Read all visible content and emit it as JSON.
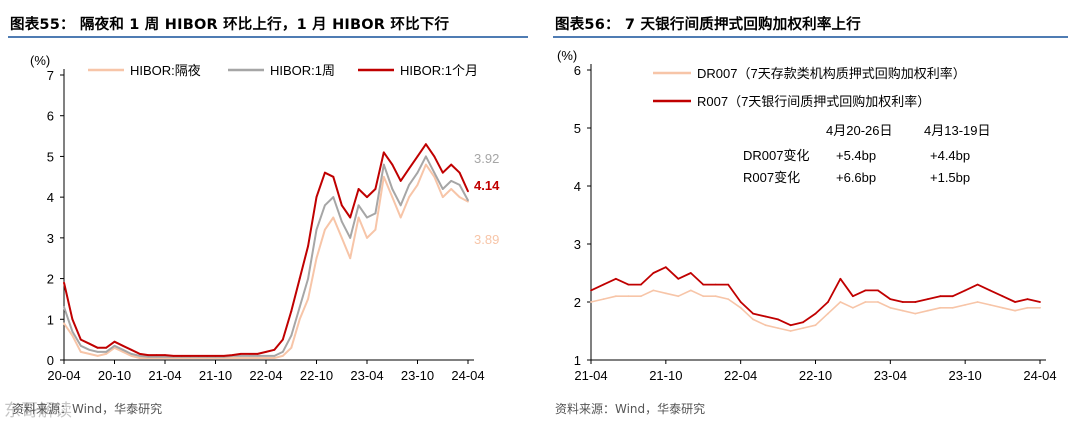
{
  "charts": {
    "left": {
      "figure_title": "图表55： 隔夜和 1 周 HIBOR 环比上行，1 月 HIBOR 环比下行",
      "source": "资料来源：Wind，华泰研究",
      "watermark": "东哥解读"
    },
    "right": {
      "figure_title": "图表56： 7 天银行间质押式回购加权利率上行",
      "source": "资料来源：Wind，华泰研究"
    }
  },
  "colors": {
    "overnight": "#f7c5a8",
    "week": "#a6a6a6",
    "month": "#c00000",
    "dr007": "#f7c5a8",
    "r007": "#c00000",
    "title_rule": "#4f7cb3"
  },
  "chart_data": [
    {
      "type": "line",
      "unit": "(%)",
      "ylim": [
        0,
        7
      ],
      "yticks": [
        "0",
        "1",
        "2",
        "3",
        "4",
        "5",
        "6",
        "7"
      ],
      "xticks": [
        "20-04",
        "20-10",
        "21-04",
        "21-10",
        "22-04",
        "22-10",
        "23-04",
        "23-10",
        "24-04"
      ],
      "legend_position": "top",
      "grid": false,
      "x": [
        "2020-04",
        "2020-05",
        "2020-06",
        "2020-07",
        "2020-08",
        "2020-09",
        "2020-10",
        "2020-11",
        "2020-12",
        "2021-01",
        "2021-02",
        "2021-03",
        "2021-04",
        "2021-05",
        "2021-06",
        "2021-07",
        "2021-08",
        "2021-09",
        "2021-10",
        "2021-11",
        "2021-12",
        "2022-01",
        "2022-02",
        "2022-03",
        "2022-04",
        "2022-05",
        "2022-06",
        "2022-07",
        "2022-08",
        "2022-09",
        "2022-10",
        "2022-11",
        "2022-12",
        "2023-01",
        "2023-02",
        "2023-03",
        "2023-04",
        "2023-05",
        "2023-06",
        "2023-07",
        "2023-08",
        "2023-09",
        "2023-10",
        "2023-11",
        "2023-12",
        "2024-01",
        "2024-02",
        "2024-03",
        "2024-04"
      ],
      "series": [
        {
          "name": "HIBOR:隔夜",
          "values": [
            0.9,
            0.6,
            0.2,
            0.15,
            0.1,
            0.15,
            0.3,
            0.2,
            0.1,
            0.05,
            0.05,
            0.05,
            0.05,
            0.05,
            0.05,
            0.05,
            0.05,
            0.05,
            0.05,
            0.05,
            0.05,
            0.05,
            0.05,
            0.05,
            0.05,
            0.05,
            0.1,
            0.3,
            1.0,
            1.5,
            2.5,
            3.2,
            3.5,
            3.0,
            2.5,
            3.5,
            3.0,
            3.2,
            4.5,
            4.0,
            3.5,
            4.0,
            4.3,
            4.8,
            4.5,
            4.0,
            4.2,
            4.0,
            3.89
          ]
        },
        {
          "name": "HIBOR:1周",
          "values": [
            1.3,
            0.7,
            0.35,
            0.25,
            0.2,
            0.2,
            0.35,
            0.25,
            0.15,
            0.1,
            0.08,
            0.08,
            0.08,
            0.08,
            0.08,
            0.08,
            0.08,
            0.08,
            0.08,
            0.08,
            0.1,
            0.1,
            0.1,
            0.1,
            0.1,
            0.1,
            0.2,
            0.6,
            1.3,
            2.0,
            3.2,
            3.8,
            4.0,
            3.4,
            3.0,
            3.8,
            3.5,
            3.6,
            4.8,
            4.2,
            3.8,
            4.3,
            4.6,
            5.0,
            4.6,
            4.2,
            4.4,
            4.3,
            3.92
          ]
        },
        {
          "name": "HIBOR:1个月",
          "values": [
            1.9,
            1.0,
            0.5,
            0.4,
            0.3,
            0.3,
            0.45,
            0.35,
            0.25,
            0.15,
            0.12,
            0.12,
            0.12,
            0.1,
            0.1,
            0.1,
            0.1,
            0.1,
            0.1,
            0.1,
            0.12,
            0.15,
            0.15,
            0.15,
            0.2,
            0.25,
            0.5,
            1.2,
            2.0,
            2.8,
            4.0,
            4.6,
            4.5,
            3.8,
            3.5,
            4.2,
            4.0,
            4.2,
            5.1,
            4.8,
            4.4,
            4.7,
            5.0,
            5.3,
            5.0,
            4.6,
            4.8,
            4.6,
            4.14
          ]
        }
      ],
      "end_labels": [
        "3.92",
        "4.14",
        "3.89"
      ]
    },
    {
      "type": "line",
      "unit": "(%)",
      "ylim": [
        1,
        6
      ],
      "yticks": [
        "1",
        "2",
        "3",
        "4",
        "5",
        "6"
      ],
      "xticks": [
        "21-04",
        "21-10",
        "22-04",
        "22-10",
        "23-04",
        "23-10",
        "24-04"
      ],
      "legend_position": "top-left",
      "grid": false,
      "x": [
        "2021-04",
        "2021-05",
        "2021-06",
        "2021-07",
        "2021-08",
        "2021-09",
        "2021-10",
        "2021-11",
        "2021-12",
        "2022-01",
        "2022-02",
        "2022-03",
        "2022-04",
        "2022-05",
        "2022-06",
        "2022-07",
        "2022-08",
        "2022-09",
        "2022-10",
        "2022-11",
        "2022-12",
        "2023-01",
        "2023-02",
        "2023-03",
        "2023-04",
        "2023-05",
        "2023-06",
        "2023-07",
        "2023-08",
        "2023-09",
        "2023-10",
        "2023-11",
        "2023-12",
        "2024-01",
        "2024-02",
        "2024-03",
        "2024-04"
      ],
      "series": [
        {
          "name": "DR007（7天存款类机构质押式回购加权利率）",
          "values": [
            2.0,
            2.05,
            2.1,
            2.1,
            2.1,
            2.2,
            2.15,
            2.1,
            2.2,
            2.1,
            2.1,
            2.05,
            1.9,
            1.7,
            1.6,
            1.55,
            1.5,
            1.55,
            1.6,
            1.8,
            2.0,
            1.9,
            2.0,
            2.0,
            1.9,
            1.85,
            1.8,
            1.85,
            1.9,
            1.9,
            1.95,
            2.0,
            1.95,
            1.9,
            1.85,
            1.9,
            1.9
          ]
        },
        {
          "name": "R007（7天银行间质押式回购加权利率）",
          "values": [
            2.2,
            2.3,
            2.4,
            2.3,
            2.3,
            2.5,
            2.6,
            2.4,
            2.5,
            2.3,
            2.3,
            2.3,
            2.0,
            1.8,
            1.75,
            1.7,
            1.6,
            1.65,
            1.8,
            2.0,
            2.4,
            2.1,
            2.2,
            2.2,
            2.05,
            2.0,
            2.0,
            2.05,
            2.1,
            2.1,
            2.2,
            2.3,
            2.2,
            2.1,
            2.0,
            2.05,
            2.0
          ]
        }
      ],
      "annotation": {
        "columns": [
          "4月20-26日",
          "4月13-19日"
        ],
        "rows": [
          {
            "label": "DR007变化",
            "values": [
              "+5.4bp",
              "+4.4bp"
            ]
          },
          {
            "label": "R007变化",
            "values": [
              "+6.6bp",
              "+1.5bp"
            ]
          }
        ]
      }
    }
  ]
}
